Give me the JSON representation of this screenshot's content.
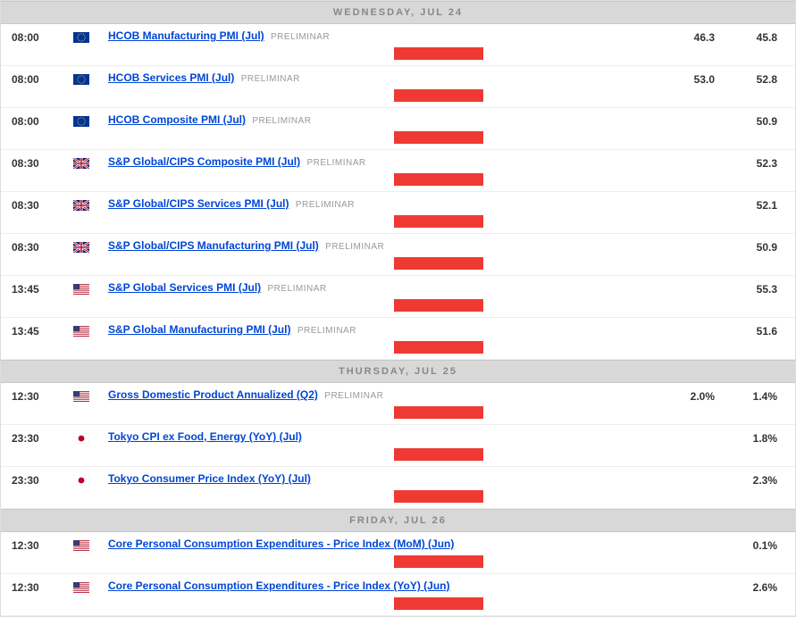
{
  "colors": {
    "header_bg": "#d8d8d8",
    "header_text": "#888888",
    "link": "#0046d5",
    "impact_bar": "#ef3a34",
    "prelim_text": "#999999",
    "row_border": "#eeeeee",
    "value_text": "#333333"
  },
  "days": [
    {
      "label": "WEDNESDAY, JUL 24",
      "events": [
        {
          "time": "08:00",
          "flag": "eu",
          "event": "HCOB Manufacturing PMI (Jul)",
          "tag": "PRELIMINAR",
          "actual": "46.3",
          "prev": "45.8"
        },
        {
          "time": "08:00",
          "flag": "eu",
          "event": "HCOB Services PMI (Jul)",
          "tag": "PRELIMINAR",
          "actual": "53.0",
          "prev": "52.8"
        },
        {
          "time": "08:00",
          "flag": "eu",
          "event": "HCOB Composite PMI (Jul)",
          "tag": "PRELIMINAR",
          "actual": "",
          "prev": "50.9"
        },
        {
          "time": "08:30",
          "flag": "uk",
          "event": "S&P Global/CIPS Composite PMI (Jul)",
          "tag": "PRELIMINAR",
          "actual": "",
          "prev": "52.3"
        },
        {
          "time": "08:30",
          "flag": "uk",
          "event": "S&P Global/CIPS Services PMI (Jul)",
          "tag": "PRELIMINAR",
          "actual": "",
          "prev": "52.1"
        },
        {
          "time": "08:30",
          "flag": "uk",
          "event": "S&P Global/CIPS Manufacturing PMI (Jul)",
          "tag": "PRELIMINAR",
          "actual": "",
          "prev": "50.9"
        },
        {
          "time": "13:45",
          "flag": "us",
          "event": "S&P Global Services PMI (Jul)",
          "tag": "PRELIMINAR",
          "actual": "",
          "prev": "55.3"
        },
        {
          "time": "13:45",
          "flag": "us",
          "event": "S&P Global Manufacturing PMI (Jul)",
          "tag": "PRELIMINAR",
          "actual": "",
          "prev": "51.6"
        }
      ]
    },
    {
      "label": "THURSDAY, JUL 25",
      "events": [
        {
          "time": "12:30",
          "flag": "us",
          "event": "Gross Domestic Product Annualized (Q2)",
          "tag": "PRELIMINAR",
          "actual": "2.0%",
          "prev": "1.4%"
        },
        {
          "time": "23:30",
          "flag": "jp",
          "event": "Tokyo CPI ex Food, Energy (YoY) (Jul)",
          "tag": "",
          "actual": "",
          "prev": "1.8%"
        },
        {
          "time": "23:30",
          "flag": "jp",
          "event": "Tokyo Consumer Price Index (YoY) (Jul)",
          "tag": "",
          "actual": "",
          "prev": "2.3%"
        }
      ]
    },
    {
      "label": "FRIDAY, JUL 26",
      "events": [
        {
          "time": "12:30",
          "flag": "us",
          "event": "Core Personal Consumption Expenditures - Price Index (MoM) (Jun)",
          "tag": "",
          "actual": "",
          "prev": "0.1%"
        },
        {
          "time": "12:30",
          "flag": "us",
          "event": "Core Personal Consumption Expenditures - Price Index (YoY) (Jun)",
          "tag": "",
          "actual": "",
          "prev": "2.6%"
        }
      ]
    }
  ]
}
